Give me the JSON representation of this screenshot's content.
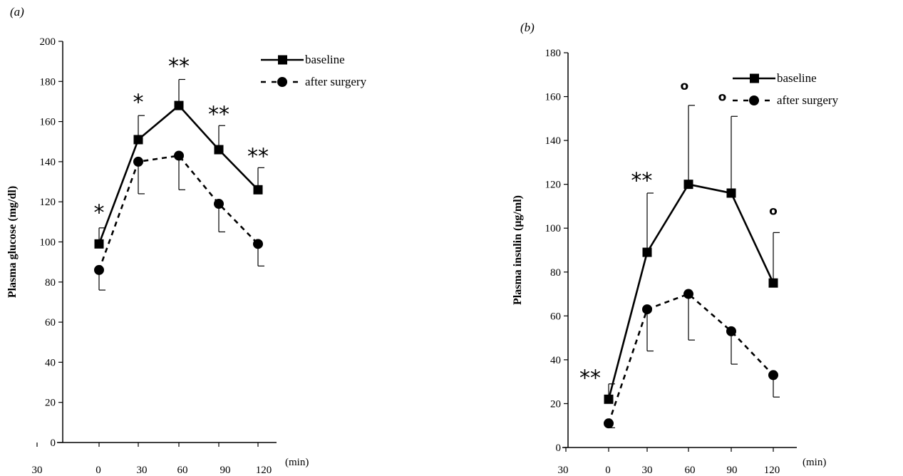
{
  "chart_data": [
    {
      "type": "line",
      "panel_label": "(a)",
      "ylabel": "Plasma glucose (mg/dl)",
      "xlabel": "",
      "x_unit": "(min)",
      "x_tick_labels": [
        "30",
        "0",
        "30",
        "60",
        "90",
        "120"
      ],
      "x": [
        0,
        30,
        60,
        90,
        120
      ],
      "ylim": [
        0,
        200
      ],
      "y_ticks": [
        0,
        20,
        40,
        60,
        80,
        100,
        120,
        140,
        160,
        180,
        200
      ],
      "legend": {
        "position": "top-right",
        "entries": [
          "baseline",
          "after surgery"
        ]
      },
      "series": [
        {
          "name": "baseline",
          "style": "solid",
          "marker": "square",
          "values": [
            99,
            151,
            168,
            146,
            126
          ],
          "error_up": [
            107,
            163,
            181,
            158,
            137
          ]
        },
        {
          "name": "after surgery",
          "style": "dashed",
          "marker": "circle",
          "values": [
            86,
            140,
            143,
            119,
            99
          ],
          "error_down": [
            76,
            124,
            126,
            105,
            88
          ]
        }
      ],
      "annotations": [
        {
          "x": 0,
          "text": "*",
          "y": 116
        },
        {
          "x": 30,
          "text": "*",
          "y": 171
        },
        {
          "x": 60,
          "text": "**",
          "y": 189
        },
        {
          "x": 90,
          "text": "**",
          "y": 165
        },
        {
          "x": 120,
          "text": "**",
          "y": 144
        }
      ]
    },
    {
      "type": "line",
      "panel_label": "(b)",
      "ylabel": "Plasma insulin (μg/ml)",
      "xlabel": "",
      "x_unit": "(min)",
      "x_tick_labels": [
        "30",
        "0",
        "30",
        "60",
        "90",
        "120"
      ],
      "x": [
        0,
        30,
        60,
        90,
        120
      ],
      "ylim": [
        0,
        180
      ],
      "y_ticks": [
        0,
        20,
        40,
        60,
        80,
        100,
        120,
        140,
        160,
        180
      ],
      "legend": {
        "position": "top-right",
        "entries": [
          "baseline",
          "after surgery"
        ]
      },
      "series": [
        {
          "name": "baseline",
          "style": "solid",
          "marker": "square",
          "values": [
            22,
            89,
            120,
            116,
            75
          ],
          "error_up": [
            29,
            116,
            156,
            151,
            98
          ]
        },
        {
          "name": "after surgery",
          "style": "dashed",
          "marker": "circle",
          "values": [
            11,
            63,
            70,
            53,
            33
          ],
          "error_down": [
            9,
            44,
            49,
            38,
            23
          ]
        }
      ],
      "annotations": [
        {
          "x": -8,
          "text": "**",
          "y": 33
        },
        {
          "x": 28,
          "text": "**",
          "y": 123
        },
        {
          "x": 58,
          "text": "o",
          "y": 165
        },
        {
          "x": 87,
          "text": "o",
          "y": 160
        },
        {
          "x": 120,
          "text": "o",
          "y": 108
        }
      ]
    }
  ]
}
